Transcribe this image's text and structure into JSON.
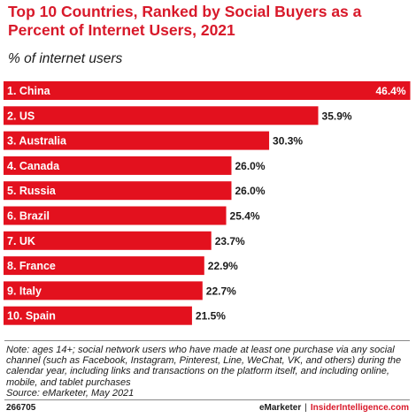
{
  "header": {
    "title": "Top 10 Countries, Ranked by Social Buyers as a Percent of Internet Users, 2021",
    "subtitle": "% of internet users"
  },
  "chart_data": {
    "type": "bar",
    "orientation": "horizontal",
    "title": "Top 10 Countries, Ranked by Social Buyers as a Percent of Internet Users, 2021",
    "subtitle": "% of internet users",
    "categories": [
      "1. China",
      "2. US",
      "3. Australia",
      "4. Canada",
      "5. Russia",
      "6. Brazil",
      "7. UK",
      "8. France",
      "9. Italy",
      "10. Spain"
    ],
    "values": [
      46.4,
      35.9,
      30.3,
      26.0,
      26.0,
      25.4,
      23.7,
      22.9,
      22.7,
      21.5
    ],
    "value_labels": [
      "46.4%",
      "35.9%",
      "30.3%",
      "26.0%",
      "26.0%",
      "25.4%",
      "23.7%",
      "22.9%",
      "22.7%",
      "21.5%"
    ],
    "xlim": [
      0,
      46.4
    ],
    "grid": false,
    "colors": {
      "bar": "#e3111e"
    }
  },
  "footer": {
    "note": "Note: ages 14+; social network users who have made at least one purchase via any social channel (such as Facebook, Instagram, Pinterest, Line, WeChat, VK, and others) during the calendar year, including links and transactions on the platform itself, and including online, mobile, and tablet purchases",
    "source": "Source: eMarketer, May 2021",
    "chart_id": "266705",
    "brand_emarketer": "eMarketer",
    "brand_separator": "|",
    "brand_insider": "InsiderIntelligence.com"
  }
}
